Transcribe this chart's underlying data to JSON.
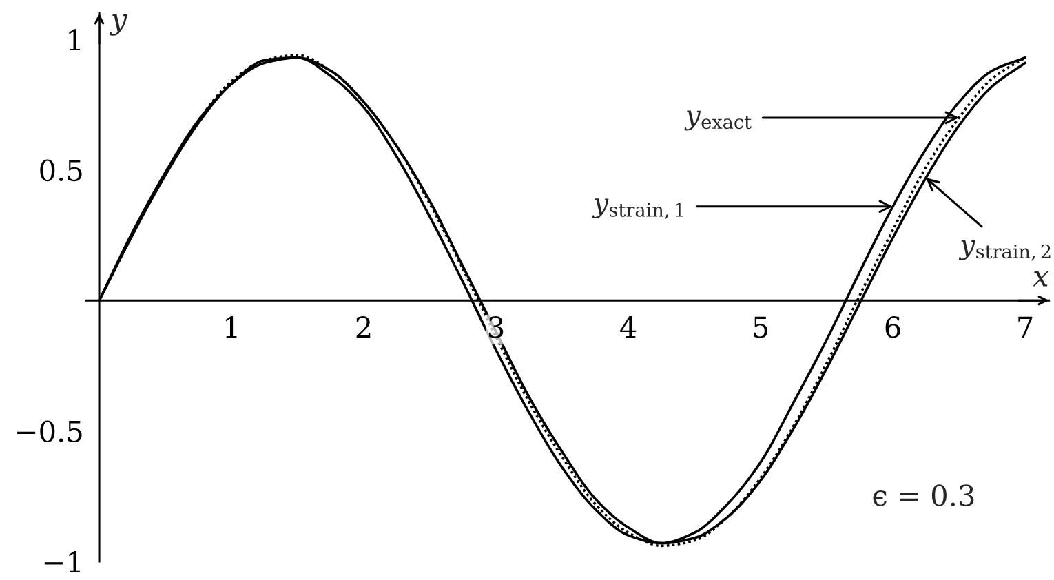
{
  "chart_data": {
    "type": "line",
    "xlabel": "x",
    "ylabel": "y",
    "x": [
      0,
      0.25,
      0.5,
      0.75,
      1,
      1.25,
      1.5,
      1.75,
      2,
      2.25,
      2.5,
      2.75,
      3,
      3.25,
      3.5,
      3.75,
      4,
      4.25,
      4.5,
      4.75,
      5,
      5.25,
      5.5,
      5.75,
      6,
      6.25,
      6.5,
      6.75,
      7
    ],
    "series": [
      {
        "color": "#000000",
        "line_style": "dotted",
        "values": [
          0,
          0.25,
          0.49,
          0.69,
          0.84,
          0.92,
          0.94,
          0.88,
          0.76,
          0.59,
          0.37,
          0.12,
          -0.14,
          -0.39,
          -0.6,
          -0.78,
          -0.89,
          -0.94,
          -0.92,
          -0.83,
          -0.68,
          -0.48,
          -0.24,
          0.02,
          0.27,
          0.51,
          0.7,
          0.85,
          0.93
        ]
      },
      {
        "color": "#000000",
        "line_style": "solid",
        "values": [
          0,
          0.26,
          0.49,
          0.69,
          0.83,
          0.92,
          0.93,
          0.86,
          0.74,
          0.55,
          0.32,
          0.07,
          -0.19,
          -0.43,
          -0.64,
          -0.8,
          -0.9,
          -0.93,
          -0.89,
          -0.78,
          -0.62,
          -0.39,
          -0.15,
          0.11,
          0.36,
          0.58,
          0.76,
          0.88,
          0.93
        ]
      },
      {
        "color": "#000000",
        "line_style": "solid",
        "values": [
          0,
          0.25,
          0.48,
          0.68,
          0.83,
          0.91,
          0.93,
          0.88,
          0.76,
          0.59,
          0.38,
          0.13,
          -0.12,
          -0.37,
          -0.58,
          -0.76,
          -0.87,
          -0.93,
          -0.91,
          -0.83,
          -0.69,
          -0.49,
          -0.26,
          -0.01,
          0.24,
          0.47,
          0.67,
          0.82,
          0.91
        ]
      }
    ],
    "xlim": [
      -0.1,
      7.18
    ],
    "ylim": [
      -1,
      1.1
    ],
    "xticks": [
      1,
      2,
      3,
      4,
      5,
      6,
      7
    ],
    "yticks": [
      {
        "value": -1,
        "label": "−1"
      },
      {
        "value": -0.5,
        "label": "−0.5"
      },
      0.5,
      1
    ],
    "annotations": [
      {
        "text": "y$_{exact}$",
        "x": 6.5,
        "y": 0.7
      },
      {
        "text": "y$_{strain,1}$",
        "x": 6,
        "y": 0.36
      },
      {
        "text": "y$_{strain,2}$",
        "x": 6.25,
        "y": 0.47
      },
      "ϵ = 0.3"
    ],
    "grid": false
  }
}
